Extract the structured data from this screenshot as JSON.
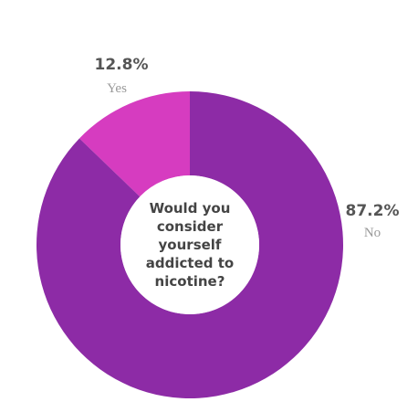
{
  "chart_data": {
    "type": "donut",
    "title": "Would you consider yourself addicted to nicotine?",
    "categories": [
      "Yes",
      "No"
    ],
    "values": [
      12.8,
      87.2
    ],
    "value_labels": [
      "12.8%",
      "87.2%"
    ],
    "colors": [
      "#d63cc0",
      "#8d2ba6"
    ]
  }
}
